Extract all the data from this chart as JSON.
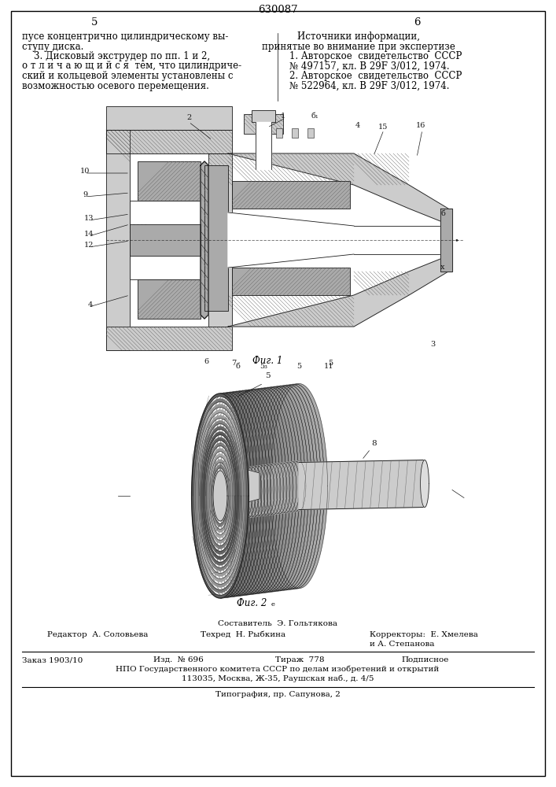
{
  "patent_number": "630087",
  "page_left": "5",
  "page_right": "6",
  "left_text": [
    "пусе концентрично цилиндрическому вы-",
    "ступу диска.",
    "    3. Дисковый экструдер по пп. 1 и 2,",
    "о т л и ч а ю щ и й с я  тем, что цилиндриче-",
    "ский и кольцевой элементы установлены с",
    "возможностью осевого перемещения."
  ],
  "right_text_title": "Источники информации,",
  "right_text_subtitle": "принятые во внимание при экспертизе",
  "ref1": "1. Авторское  свидетельство  СССР",
  "ref1b": "№ 497157, кл. В 29F 3/012, 1974.",
  "ref2": "2. Авторское  свидетельство  СССР",
  "ref2b": "№ 522964, кл. В 29F 3/012, 1974.",
  "fig1_caption": "Фиг. 1",
  "fig2_caption": "Фиг. 2",
  "fig2_superscript": "е",
  "composer": "Составитель  Э. Гольтякова",
  "editor": "Редактор  А. Соловьева",
  "techred": "Техред  Н. Рыбкина",
  "correctors": "Корректоры:  Е. Хмелева",
  "correctors2": "и А. Степанова",
  "order": "Заказ 1903/10",
  "izd": "Изд.  № 696",
  "tirazh": "Тираж  778",
  "podpisnoe": "Подписное",
  "npo_line": "НПО Государственного комитета СССР по делам изобретений и открытий",
  "address": "113035, Москва, Ж-35, Раушская наб., д. 4/5",
  "typography": "Типография, пр. Сапунова, 2",
  "bg_color": "#ffffff",
  "text_color": "#000000",
  "font_size_main": 8.5,
  "font_size_small": 7.5
}
